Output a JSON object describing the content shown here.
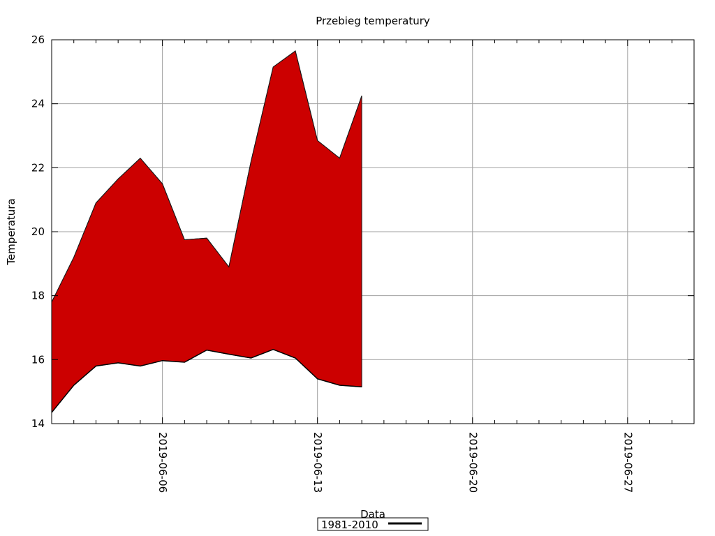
{
  "chart_data": {
    "type": "area",
    "title": "Przebieg temperatury",
    "xlabel": "Data",
    "ylabel": "Temperatura",
    "xlim": [
      "2019-06-01",
      "2019-06-30"
    ],
    "ylim": [
      14,
      26
    ],
    "grid": true,
    "y_ticks": [
      "14",
      "16",
      "18",
      "20",
      "22",
      "24",
      "26"
    ],
    "x_ticks": [
      "2019-06-06",
      "2019-06-13",
      "2019-06-20",
      "2019-06-27"
    ],
    "legend": {
      "placement": "bottom-center",
      "label": "1981-2010"
    },
    "fill_color": "#cc0000",
    "band": {
      "x": [
        "2019-06-01",
        "2019-06-02",
        "2019-06-03",
        "2019-06-04",
        "2019-06-05",
        "2019-06-06",
        "2019-06-07",
        "2019-06-08",
        "2019-06-09",
        "2019-06-10",
        "2019-06-11",
        "2019-06-12",
        "2019-06-13",
        "2019-06-14",
        "2019-06-15"
      ],
      "upper": [
        17.8,
        19.2,
        20.9,
        21.65,
        22.3,
        21.5,
        19.75,
        19.8,
        18.9,
        22.2,
        25.15,
        25.65,
        22.85,
        22.3,
        24.25
      ],
      "lower": [
        14.35,
        15.2,
        15.8,
        15.9,
        15.8,
        15.97,
        15.92,
        16.3,
        16.17,
        16.05,
        16.32,
        16.05,
        15.4,
        15.2,
        15.15
      ]
    }
  }
}
